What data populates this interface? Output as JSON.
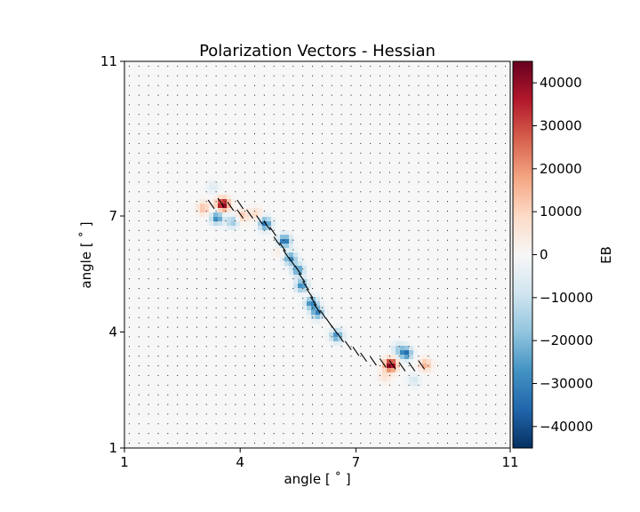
{
  "chart_data": {
    "type": "heatmap",
    "title": "Polarization Vectors - Hessian",
    "xlabel": "angle [$^\\circ$]",
    "ylabel": "angle [$^\\circ$]",
    "xlabel_text": "angle [ ˚ ]",
    "ylabel_text": "angle [ ˚ ]",
    "xlim": [
      1,
      11
    ],
    "ylim": [
      1,
      11
    ],
    "xticks": [
      1,
      4,
      7,
      11
    ],
    "yticks": [
      1,
      4,
      7,
      11
    ],
    "colorbar": {
      "label": "EB",
      "range": [
        -45000,
        45000
      ],
      "ticks": [
        40000,
        30000,
        20000,
        10000,
        0,
        -10000,
        -20000,
        -30000,
        -40000
      ],
      "tick_labels": [
        "40000",
        "30000",
        "20000",
        "10000",
        "0",
        "−10000",
        "−20000",
        "−30000",
        "−40000"
      ],
      "colormap": "RdBu_r",
      "stops": [
        "#053061",
        "#2166ac",
        "#4393c3",
        "#92c5de",
        "#d1e5f0",
        "#f7f7f7",
        "#fddbc7",
        "#f4a582",
        "#d6604d",
        "#b2182b",
        "#67001f"
      ]
    },
    "field_features": [
      {
        "x": 3.55,
        "y": 7.3,
        "value": 45000
      },
      {
        "x": 3.4,
        "y": 6.95,
        "value": -30000
      },
      {
        "x": 3.8,
        "y": 6.85,
        "value": -18000
      },
      {
        "x": 3.05,
        "y": 7.2,
        "value": 14000
      },
      {
        "x": 4.05,
        "y": 7.0,
        "value": 12000
      },
      {
        "x": 3.3,
        "y": 7.75,
        "value": -6000
      },
      {
        "x": 4.65,
        "y": 6.8,
        "value": -34000
      },
      {
        "x": 4.4,
        "y": 7.05,
        "value": 9000
      },
      {
        "x": 5.15,
        "y": 6.35,
        "value": -36000
      },
      {
        "x": 5.3,
        "y": 5.9,
        "value": -30000
      },
      {
        "x": 5.5,
        "y": 5.6,
        "value": -28000
      },
      {
        "x": 5.6,
        "y": 5.2,
        "value": -30000
      },
      {
        "x": 5.85,
        "y": 4.75,
        "value": -32000
      },
      {
        "x": 6.0,
        "y": 4.5,
        "value": -30000
      },
      {
        "x": 6.5,
        "y": 3.9,
        "value": -28000
      },
      {
        "x": 5.0,
        "y": 6.1,
        "value": 4000
      },
      {
        "x": 5.75,
        "y": 5.0,
        "value": 3000
      },
      {
        "x": 7.9,
        "y": 3.15,
        "value": 45000
      },
      {
        "x": 8.3,
        "y": 3.45,
        "value": -34000
      },
      {
        "x": 8.1,
        "y": 3.55,
        "value": -14000
      },
      {
        "x": 8.8,
        "y": 3.15,
        "value": 16000
      },
      {
        "x": 7.75,
        "y": 2.85,
        "value": 7000
      },
      {
        "x": 8.5,
        "y": 2.75,
        "value": -8000
      }
    ],
    "vectors": {
      "grid_spacing": 0.25,
      "dot_marks": "all grid points",
      "segments": [
        {
          "x": 3.25,
          "y": 7.3
        },
        {
          "x": 3.5,
          "y": 7.35
        },
        {
          "x": 3.75,
          "y": 7.25
        },
        {
          "x": 4.0,
          "y": 7.3
        },
        {
          "x": 4.0,
          "y": 7.05
        },
        {
          "x": 4.25,
          "y": 7.05
        },
        {
          "x": 4.5,
          "y": 6.9
        },
        {
          "x": 4.7,
          "y": 6.75
        },
        {
          "x": 4.85,
          "y": 6.6
        },
        {
          "x": 4.95,
          "y": 6.35
        },
        {
          "x": 5.1,
          "y": 6.2
        },
        {
          "x": 5.2,
          "y": 6.0
        },
        {
          "x": 5.35,
          "y": 5.8
        },
        {
          "x": 5.5,
          "y": 5.6
        },
        {
          "x": 5.6,
          "y": 5.4
        },
        {
          "x": 5.7,
          "y": 5.2
        },
        {
          "x": 5.8,
          "y": 5.0
        },
        {
          "x": 5.9,
          "y": 4.8
        },
        {
          "x": 6.0,
          "y": 4.6
        },
        {
          "x": 6.15,
          "y": 4.45
        },
        {
          "x": 6.3,
          "y": 4.25
        },
        {
          "x": 6.45,
          "y": 4.05
        },
        {
          "x": 6.6,
          "y": 3.85
        },
        {
          "x": 6.8,
          "y": 3.65
        },
        {
          "x": 7.0,
          "y": 3.5
        },
        {
          "x": 7.2,
          "y": 3.35
        },
        {
          "x": 7.45,
          "y": 3.25
        },
        {
          "x": 7.7,
          "y": 3.2
        },
        {
          "x": 7.95,
          "y": 3.15
        },
        {
          "x": 8.2,
          "y": 3.1
        },
        {
          "x": 8.45,
          "y": 3.1
        },
        {
          "x": 8.7,
          "y": 3.15
        }
      ],
      "angle_deg": 55
    }
  }
}
